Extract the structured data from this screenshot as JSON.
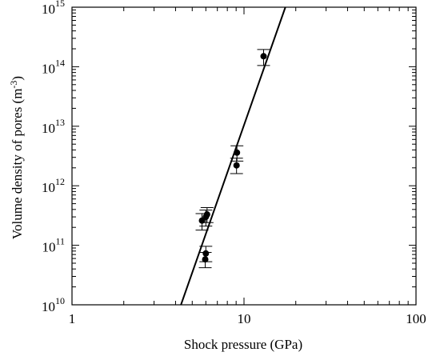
{
  "chart_data": {
    "type": "scatter",
    "title": "",
    "xlabel": "Shock pressure (GPa)",
    "ylabel_parts": [
      "Volume density of pores (m",
      "-3",
      ")"
    ],
    "x_scale": "log",
    "y_scale": "log",
    "xlim": [
      1,
      100
    ],
    "ylim": [
      10000000000.0,
      1000000000000000.0
    ],
    "x_ticks": [
      {
        "value": 1,
        "label": "1"
      },
      {
        "value": 10,
        "label": "10"
      },
      {
        "value": 100,
        "label": "100"
      }
    ],
    "y_ticks": [
      {
        "value": 10000000000.0,
        "base": "10",
        "exp": "10"
      },
      {
        "value": 100000000000.0,
        "base": "10",
        "exp": "11"
      },
      {
        "value": 1000000000000.0,
        "base": "10",
        "exp": "12"
      },
      {
        "value": 10000000000000.0,
        "base": "10",
        "exp": "13"
      },
      {
        "value": 100000000000000.0,
        "base": "10",
        "exp": "14"
      },
      {
        "value": 1000000000000000.0,
        "base": "10",
        "exp": "15"
      }
    ],
    "points": [
      {
        "x": 5.7,
        "y": 260000000000.0,
        "y_err_low": 180000000000.0,
        "y_err_high": 340000000000.0
      },
      {
        "x": 6.0,
        "y": 300000000000.0,
        "y_err_low": 210000000000.0,
        "y_err_high": 390000000000.0
      },
      {
        "x": 6.1,
        "y": 330000000000.0,
        "y_err_low": 240000000000.0,
        "y_err_high": 430000000000.0
      },
      {
        "x": 6.0,
        "y": 73000000000.0,
        "y_err_low": 53000000000.0,
        "y_err_high": 96000000000.0
      },
      {
        "x": 5.95,
        "y": 58000000000.0,
        "y_err_low": 42000000000.0,
        "y_err_high": 76000000000.0
      },
      {
        "x": 9.1,
        "y": 3600000000000.0,
        "y_err_low": 2600000000000.0,
        "y_err_high": 4700000000000.0
      },
      {
        "x": 9.05,
        "y": 2200000000000.0,
        "y_err_low": 1600000000000.0,
        "y_err_high": 2900000000000.0
      },
      {
        "x": 13.0,
        "y": 150000000000000.0,
        "y_err_low": 105000000000000.0,
        "y_err_high": 195000000000000.0
      }
    ],
    "fit_line": {
      "x": [
        4.3,
        17.4
      ],
      "y": [
        10000000000.0,
        1000000000000000.0
      ]
    },
    "grid": false,
    "legend": "none",
    "colors": {
      "marker": "#000000",
      "line": "#000000",
      "axes": "#000000",
      "background": "#ffffff"
    }
  }
}
